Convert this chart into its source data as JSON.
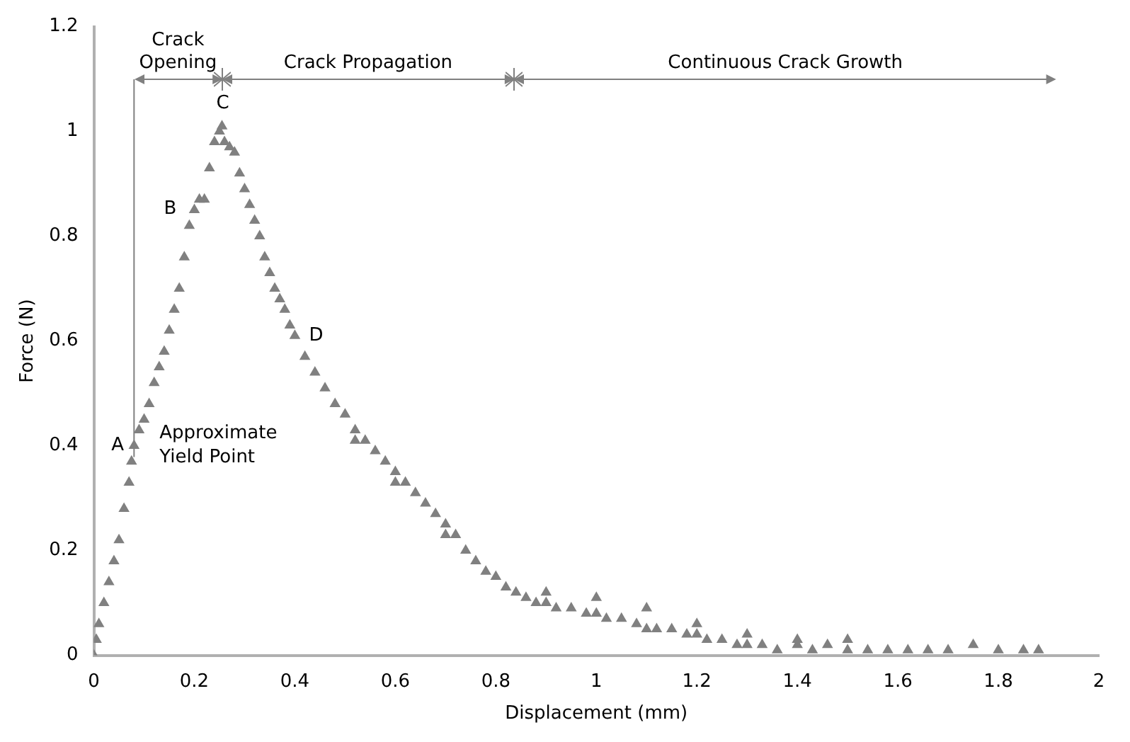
{
  "chart_data": {
    "type": "scatter",
    "xlabel": "Displacement (mm)",
    "ylabel": "Force (N)",
    "color": "#808080",
    "marker": "triangle",
    "legend": false,
    "grid": false,
    "xlim": [
      0,
      2
    ],
    "xticks": [
      0,
      0.2,
      0.4,
      0.6,
      0.8,
      1,
      1.2,
      1.4,
      1.6,
      1.8,
      2
    ],
    "ylim": [
      0,
      1.2
    ],
    "yticks": [
      0,
      0.2,
      0.4,
      0.6,
      0.8,
      1,
      1.2
    ],
    "x": [
      0,
      0.005,
      0.01,
      0.02,
      0.03,
      0.04,
      0.05,
      0.06,
      0.07,
      0.075,
      0.08,
      0.09,
      0.1,
      0.11,
      0.12,
      0.13,
      0.14,
      0.15,
      0.16,
      0.17,
      0.18,
      0.19,
      0.2,
      0.21,
      0.22,
      0.23,
      0.24,
      0.25,
      0.255,
      0.26,
      0.27,
      0.28,
      0.29,
      0.3,
      0.31,
      0.32,
      0.33,
      0.34,
      0.35,
      0.36,
      0.37,
      0.38,
      0.39,
      0.4,
      0.42,
      0.44,
      0.46,
      0.48,
      0.5,
      0.52,
      0.54,
      0.56,
      0.58,
      0.6,
      0.62,
      0.64,
      0.66,
      0.68,
      0.7,
      0.72,
      0.74,
      0.76,
      0.78,
      0.8,
      0.82,
      0.84,
      0.86,
      0.88,
      0.9,
      0.92,
      0.95,
      0.98,
      1,
      1.02,
      1.05,
      1.08,
      1.1,
      1.12,
      1.15,
      1.18,
      1.2,
      1.22,
      1.25,
      1.28,
      1.3,
      1.33,
      1.36,
      1.4,
      1.43,
      1.46,
      1.5,
      1.54,
      1.58,
      1.62,
      1.66,
      1.7,
      1.75,
      1.8,
      1.85,
      1.88,
      0.52,
      0.6,
      0.7,
      0.9,
      1,
      1.1,
      1.2,
      1.3,
      1.4,
      1.5
    ],
    "values": [
      0,
      0.03,
      0.06,
      0.1,
      0.14,
      0.18,
      0.22,
      0.28,
      0.33,
      0.37,
      0.4,
      0.43,
      0.45,
      0.48,
      0.52,
      0.55,
      0.58,
      0.62,
      0.66,
      0.7,
      0.76,
      0.82,
      0.85,
      0.87,
      0.87,
      0.93,
      0.98,
      1,
      1.01,
      0.98,
      0.97,
      0.96,
      0.92,
      0.89,
      0.86,
      0.83,
      0.8,
      0.76,
      0.73,
      0.7,
      0.68,
      0.66,
      0.63,
      0.61,
      0.57,
      0.54,
      0.51,
      0.48,
      0.46,
      0.43,
      0.41,
      0.39,
      0.37,
      0.35,
      0.33,
      0.31,
      0.29,
      0.27,
      0.25,
      0.23,
      0.2,
      0.18,
      0.16,
      0.15,
      0.13,
      0.12,
      0.11,
      0.1,
      0.1,
      0.09,
      0.09,
      0.08,
      0.08,
      0.07,
      0.07,
      0.06,
      0.05,
      0.05,
      0.05,
      0.04,
      0.04,
      0.03,
      0.03,
      0.02,
      0.02,
      0.02,
      0.01,
      0.02,
      0.01,
      0.02,
      0.01,
      0.01,
      0.01,
      0.01,
      0.01,
      0.01,
      0.02,
      0.01,
      0.01,
      0.01,
      0.41,
      0.33,
      0.23,
      0.12,
      0.11,
      0.09,
      0.06,
      0.04,
      0.03,
      0.03
    ],
    "ref_lines": [
      {
        "axis": "x",
        "value": 0.08
      }
    ],
    "annotations": [
      {
        "text": "A",
        "x": 0.08,
        "y": 0.4
      },
      {
        "text": "Approximate Yield Point",
        "x": 0.08,
        "y": 0.4
      },
      {
        "text": "B",
        "x": 0.19,
        "y": 0.82
      },
      {
        "text": "C",
        "x": 0.255,
        "y": 1.01
      },
      {
        "text": "D",
        "x": 0.4,
        "y": 0.61
      },
      "Crack Opening",
      "Crack Propagation",
      "Continuous Crack Growth"
    ]
  }
}
